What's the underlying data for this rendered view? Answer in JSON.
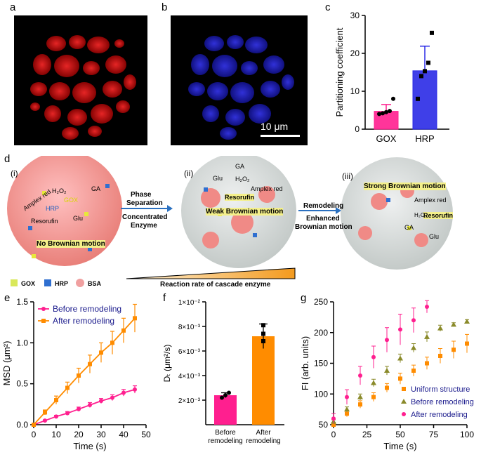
{
  "panels": {
    "a": "a",
    "b": "b",
    "c": "c",
    "d": "d",
    "e": "e",
    "f": "f",
    "g": "g"
  },
  "colors": {
    "pink": "#ff1f8f",
    "orange": "#ff8c00",
    "blue": "#2a2ae6",
    "olive": "#8a8a2a",
    "darkblue": "#1a1a8c"
  },
  "panel_b": {
    "scalebar": "10 μm"
  },
  "panel_d": {
    "stages": [
      "(i)",
      "(ii)",
      "(iii)"
    ],
    "stage1": {
      "amplex": "Amplex red",
      "h2o2": "H₂O₂",
      "gox": "GOX",
      "hrp": "HRP",
      "ga": "GA",
      "glu": "Glu",
      "resorufin": "Resorufin",
      "nobrown": "No Brownian motion"
    },
    "arrow1": {
      "top1": "Phase",
      "top2": "Separation",
      "bot1": "Concentrated",
      "bot2": "Enzyme"
    },
    "stage2": {
      "ga": "GA",
      "glu": "Glu",
      "h2o2": "H₂O₂",
      "amplex": "Amplex red",
      "resorufin": "Resorufin",
      "weak": "Weak Brownian motion"
    },
    "arrow2": {
      "top": "Remodeling",
      "bot1": "Enhanced",
      "bot2": "Brownian motion"
    },
    "stage3": {
      "strong": "Strong Brownian motion",
      "amplex": "Amplex red",
      "resorufin": "Resorufin",
      "ga": "GA",
      "glu": "Glu",
      "h2o2": "H₂O₂"
    },
    "legend": {
      "gox": "GOX",
      "hrp": "HRP",
      "bsa": "BSA"
    },
    "rate": "Reaction rate of cascade enzyme"
  },
  "chart_data": [
    {
      "id": "c",
      "type": "bar",
      "categories": [
        "GOX",
        "HRP"
      ],
      "values": [
        4.7,
        15.4
      ],
      "errors": [
        1.8,
        6.5
      ],
      "points": [
        [
          4.0,
          4.2,
          4.5,
          4.8,
          8.0
        ],
        [
          8.0,
          14.0,
          15.3,
          17.5,
          25.4
        ]
      ],
      "ylabel": "Partitioning coefficient",
      "ylim": [
        0,
        30
      ],
      "yticks": [
        "0",
        "10",
        "20",
        "30"
      ]
    },
    {
      "id": "e",
      "type": "line",
      "xlabel": "Time (s)",
      "ylabel": "MSD (μm²)",
      "xlim": [
        0,
        50
      ],
      "ylim": [
        0,
        1.5
      ],
      "xticks": [
        "0",
        "10",
        "20",
        "30",
        "40",
        "50"
      ],
      "yticks": [
        "0.0",
        "0.5",
        "1.0",
        "1.5"
      ],
      "x": [
        0,
        5,
        10,
        15,
        20,
        25,
        30,
        35,
        40,
        45
      ],
      "series": [
        {
          "name": "Before remodeling",
          "values": [
            0,
            0.05,
            0.1,
            0.14,
            0.19,
            0.24,
            0.29,
            0.33,
            0.39,
            0.43
          ],
          "errors": [
            0,
            0.01,
            0.015,
            0.02,
            0.025,
            0.03,
            0.03,
            0.035,
            0.04,
            0.045
          ]
        },
        {
          "name": "After remodeling",
          "values": [
            0,
            0.15,
            0.3,
            0.45,
            0.6,
            0.74,
            0.88,
            1.0,
            1.15,
            1.3
          ],
          "errors": [
            0,
            0.03,
            0.05,
            0.07,
            0.09,
            0.11,
            0.12,
            0.14,
            0.15,
            0.17
          ]
        }
      ]
    },
    {
      "id": "f",
      "type": "bar",
      "categories": [
        "Before remodeling",
        "After remodeling"
      ],
      "cat_lines": [
        [
          "Before",
          "remodeling"
        ],
        [
          "After",
          "remodeling"
        ]
      ],
      "values": [
        2.4,
        7.2
      ],
      "errors": [
        0.2,
        1.0
      ],
      "points": [
        [
          2.2,
          2.4,
          2.6
        ],
        [
          6.8,
          7.4,
          8.1
        ]
      ],
      "ylabel": "Dₜ (μm²/s)",
      "ylim": [
        0,
        10
      ],
      "yticks": [
        "2×10⁻³",
        "4×10⁻³",
        "6×10⁻³",
        "8×10⁻³",
        "1×10⁻²"
      ]
    },
    {
      "id": "g",
      "type": "scatter",
      "xlabel": "Time (s)",
      "ylabel": "FI (arb. units)",
      "xlim": [
        0,
        100
      ],
      "ylim": [
        50,
        250
      ],
      "xticks": [
        "0",
        "25",
        "50",
        "75",
        "100"
      ],
      "yticks": [
        "50",
        "100",
        "150",
        "200",
        "250"
      ],
      "series": [
        {
          "name": "Uniform structure",
          "x": [
            0,
            10,
            20,
            30,
            40,
            50,
            60,
            70,
            80,
            90,
            100
          ],
          "values": [
            50,
            68,
            83,
            95,
            110,
            125,
            138,
            150,
            162,
            172,
            182
          ],
          "errors": [
            4,
            5,
            6,
            7,
            7,
            9,
            9,
            10,
            12,
            14,
            15
          ]
        },
        {
          "name": "Before remodeling",
          "x": [
            0,
            10,
            20,
            30,
            40,
            50,
            60,
            70,
            80,
            90,
            100
          ],
          "values": [
            55,
            75,
            95,
            118,
            138,
            158,
            175,
            193,
            207,
            213,
            218
          ],
          "errors": [
            3,
            4,
            5,
            6,
            7,
            7,
            7,
            8,
            5,
            3,
            3
          ]
        },
        {
          "name": "After remodeling",
          "x": [
            0,
            10,
            20,
            30,
            40,
            50,
            60,
            70
          ],
          "values": [
            60,
            95,
            130,
            160,
            188,
            205,
            220,
            242
          ],
          "errors": [
            8,
            12,
            15,
            18,
            20,
            25,
            20,
            10
          ]
        }
      ]
    }
  ]
}
